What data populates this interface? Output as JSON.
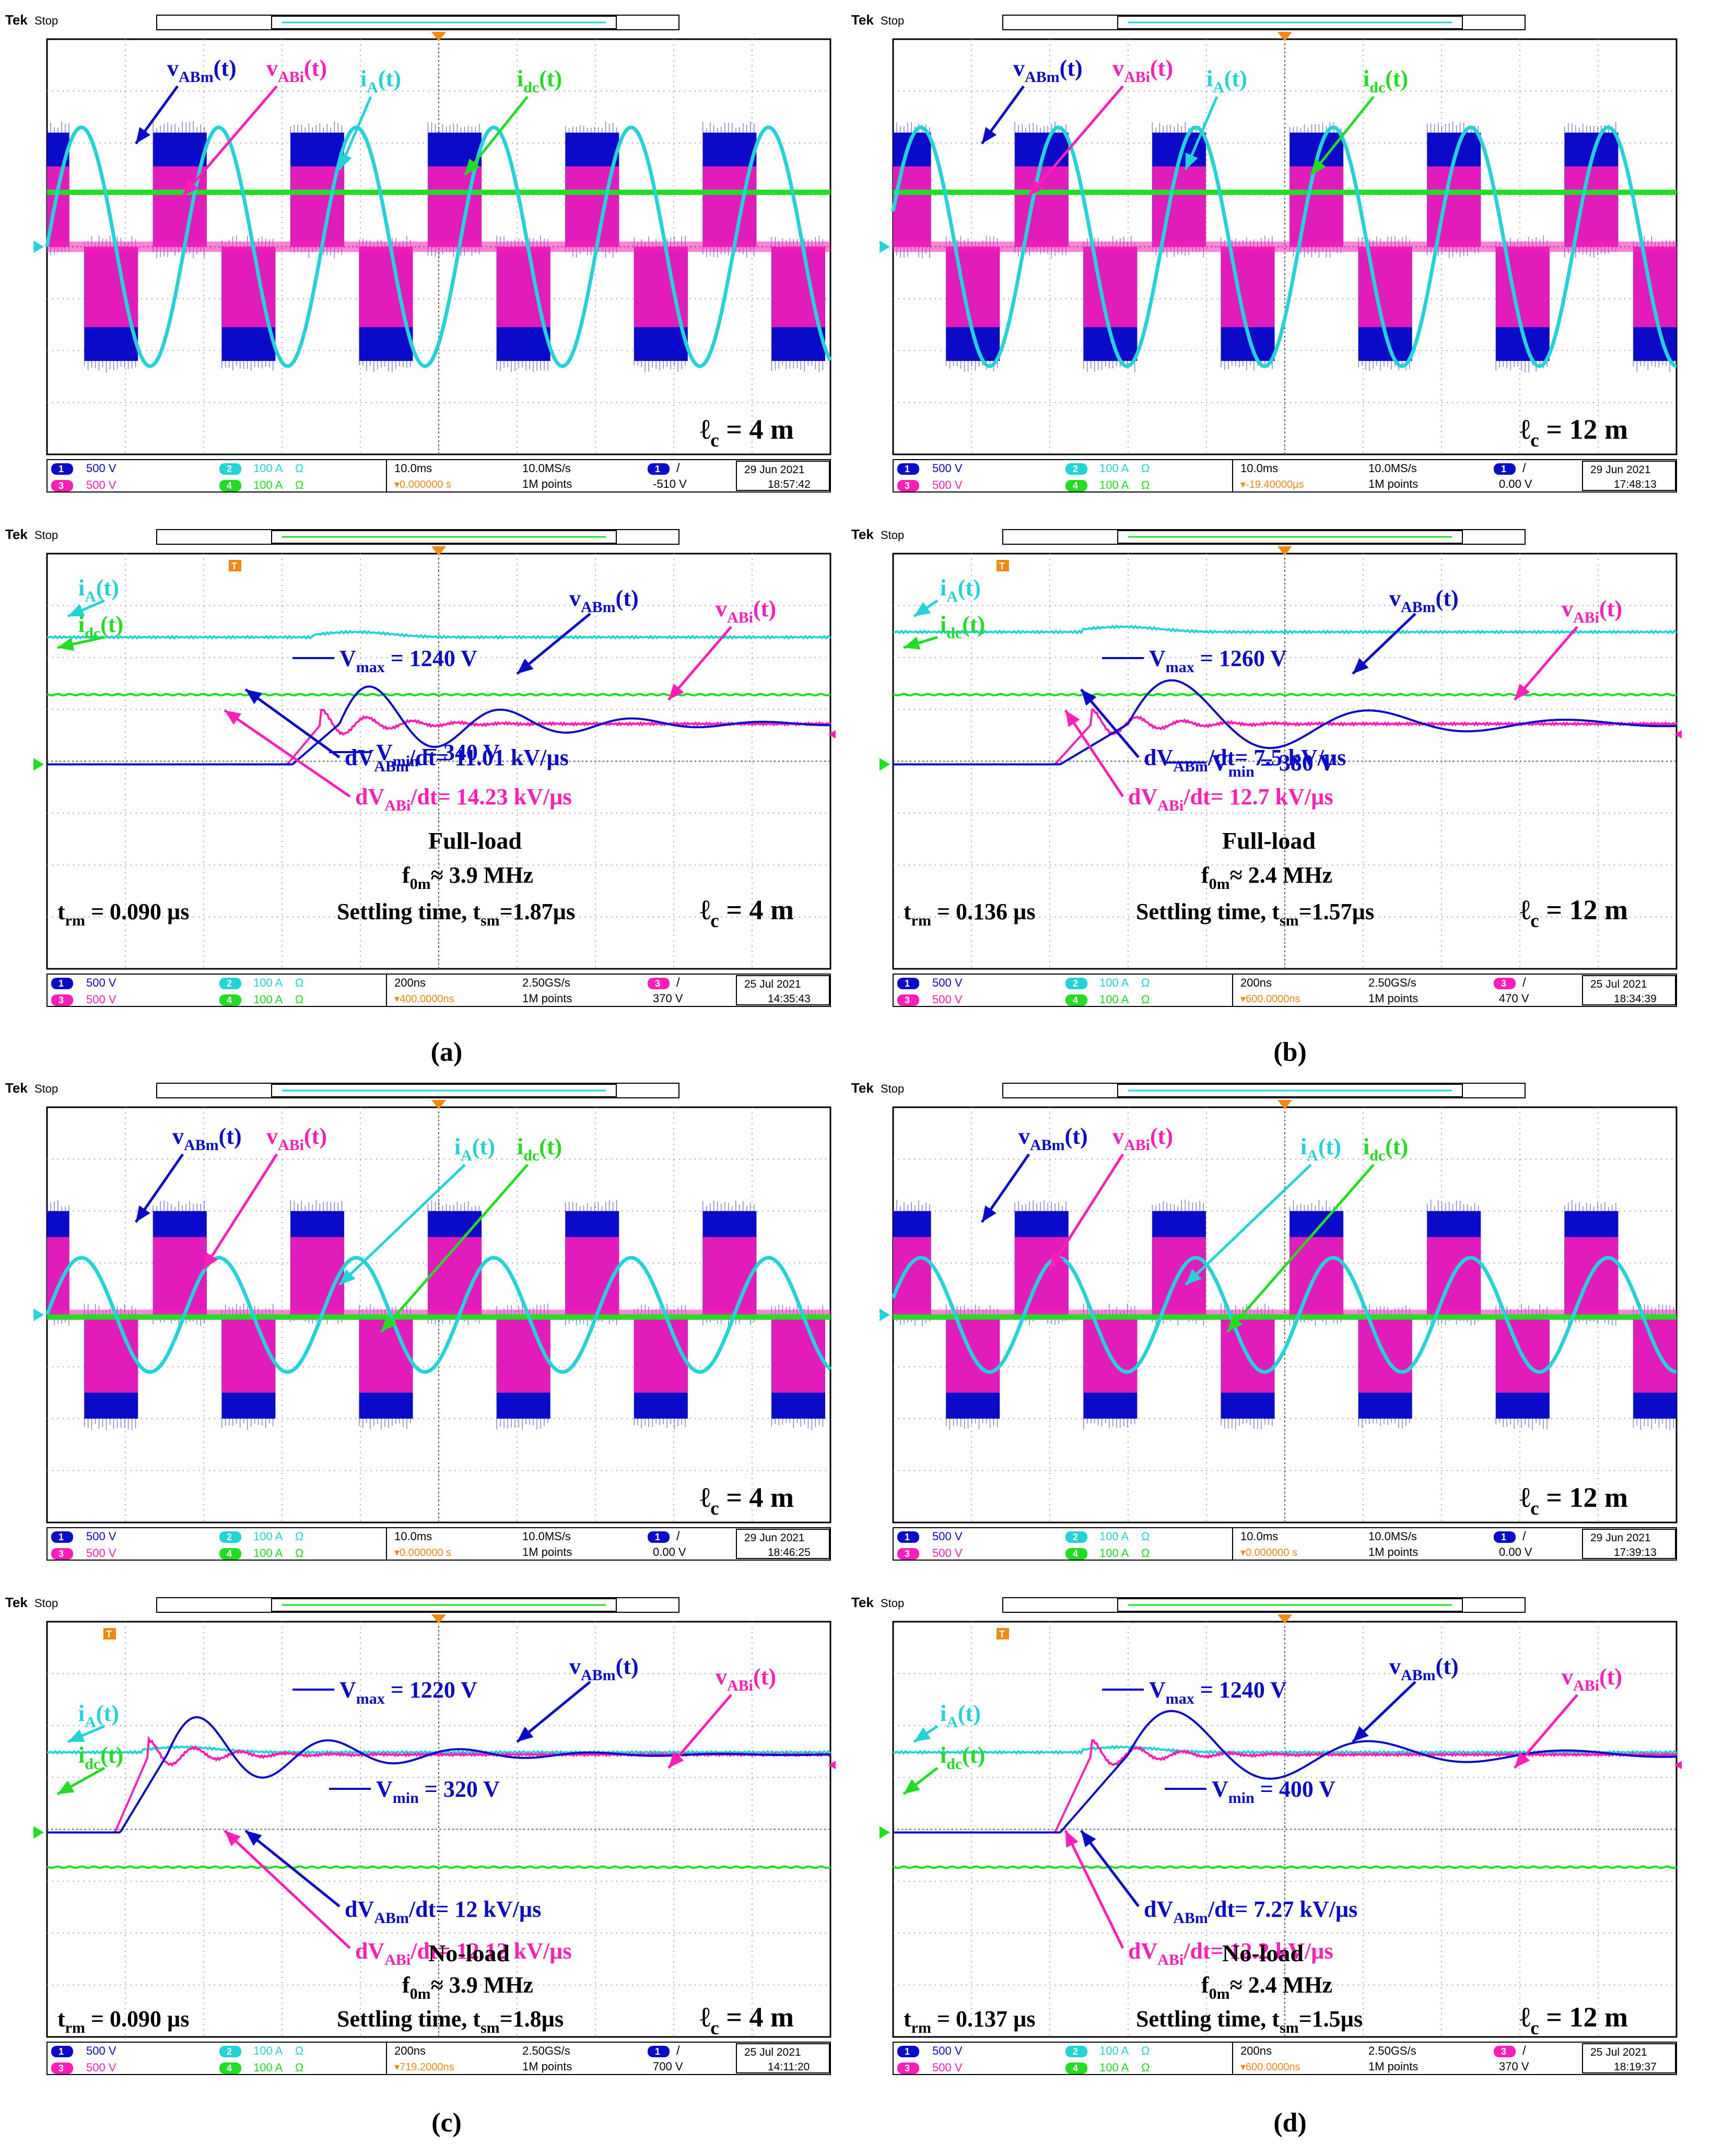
{
  "figure": {
    "captions": [
      "(a)",
      "(b)",
      "(c)",
      "(d)"
    ],
    "colors": {
      "ch1": "#0a0ac8",
      "ch2": "#22d3d8",
      "ch3": "#ff1fb8",
      "ch4": "#22dd22",
      "grid": "#8c8c8c",
      "screen_bg": "#ffffff",
      "frame": "#000000"
    }
  },
  "scope": {
    "brand": "Tek",
    "state": "Stop",
    "ch_rows": [
      {
        "ch1": "1",
        "ch1_scale": "500 V",
        "ch2": "2",
        "ch2_scale": "100 A",
        "ohm": "Ω"
      },
      {
        "ch1": "3",
        "ch1_scale": "500 V",
        "ch2": "4",
        "ch2_scale": "100 A",
        "ohm": "Ω"
      }
    ],
    "record": "1M points"
  },
  "chart_data": [
    {
      "id": "a-top",
      "type": "line",
      "condition": "Full-load, steady state",
      "cable": "4 m",
      "series": [
        {
          "name": "vABm(t)",
          "channel": 1,
          "amplitude_div": 1.9,
          "shape": "pwm-3level"
        },
        {
          "name": "vABi(t)",
          "channel": 3,
          "amplitude_div": 1.5,
          "shape": "pwm-3level"
        },
        {
          "name": "iA(t)",
          "channel": 2,
          "amplitude_div": 2.2,
          "shape": "sine",
          "cycles": 5.7
        },
        {
          "name": "idc(t)",
          "channel": 4,
          "level_div": 1.0,
          "shape": "dc"
        }
      ],
      "status": {
        "timebase": "10.0ms",
        "rate": "10.0MS/s",
        "trigger_offset": "▾0.000000 s",
        "trig_ch": "1",
        "trig_level": "-510 V",
        "date": "29 Jun  2021",
        "time": "18:57:42"
      }
    },
    {
      "id": "b-top",
      "type": "line",
      "condition": "Full-load, steady state",
      "cable": "12 m",
      "series": [
        {
          "name": "vABm(t)",
          "channel": 1,
          "amplitude_div": 1.9,
          "shape": "pwm-3level"
        },
        {
          "name": "vABi(t)",
          "channel": 3,
          "amplitude_div": 1.5,
          "shape": "pwm-3level"
        },
        {
          "name": "iA(t)",
          "channel": 2,
          "amplitude_div": 2.2,
          "shape": "sine",
          "cycles": 5.7
        },
        {
          "name": "idc(t)",
          "channel": 4,
          "level_div": 1.1,
          "shape": "dc"
        }
      ],
      "status": {
        "timebase": "10.0ms",
        "rate": "10.0MS/s",
        "trigger_offset": "▾-19.40000µs",
        "trig_ch": "1",
        "trig_level": "0.00 V",
        "date": "29 Jun  2021",
        "time": "17:48:13"
      }
    },
    {
      "id": "a-bottom",
      "type": "line",
      "condition": "Full-load transient",
      "cable": "4 m",
      "series": [
        {
          "name": "vABm(t)",
          "channel": 1,
          "vmax_V": 1240,
          "vmin_V": 340,
          "dvdt_kV_per_us": 11.01
        },
        {
          "name": "vABi(t)",
          "channel": 3,
          "dvdt_kV_per_us": 14.23
        },
        {
          "name": "iA(t)",
          "channel": 2
        },
        {
          "name": "idc(t)",
          "channel": 4
        }
      ],
      "measurements": {
        "rise_time_us": 0.09,
        "ringing_freq_MHz": 3.9,
        "settling_time_us": 1.87
      },
      "status": {
        "timebase": "200ns",
        "rate": "2.50GS/s",
        "trigger_offset": "▾400.0000ns",
        "trig_ch": "3",
        "trig_level": "370 V",
        "date": "25 Jul  2021",
        "time": "14:35:43"
      }
    },
    {
      "id": "b-bottom",
      "type": "line",
      "condition": "Full-load transient",
      "cable": "12 m",
      "series": [
        {
          "name": "vABm(t)",
          "channel": 1,
          "vmax_V": 1260,
          "vmin_V": 380,
          "dvdt_kV_per_us": 7.5
        },
        {
          "name": "vABi(t)",
          "channel": 3,
          "dvdt_kV_per_us": 12.7
        },
        {
          "name": "iA(t)",
          "channel": 2
        },
        {
          "name": "idc(t)",
          "channel": 4
        }
      ],
      "measurements": {
        "rise_time_us": 0.136,
        "ringing_freq_MHz": 2.4,
        "settling_time_us": 1.57
      },
      "status": {
        "timebase": "200ns",
        "rate": "2.50GS/s",
        "trigger_offset": "▾600.0000ns",
        "trig_ch": "3",
        "trig_level": "470 V",
        "date": "25 Jul  2021",
        "time": "18:34:39"
      }
    },
    {
      "id": "c-top",
      "type": "line",
      "condition": "No-load, steady state",
      "cable": "4 m",
      "series": [
        {
          "name": "vABm(t)",
          "channel": 1
        },
        {
          "name": "vABi(t)",
          "channel": 3
        },
        {
          "name": "iA(t)",
          "channel": 2
        },
        {
          "name": "idc(t)",
          "channel": 4
        }
      ],
      "status": {
        "timebase": "10.0ms",
        "rate": "10.0MS/s",
        "trigger_offset": "▾0.000000 s",
        "trig_ch": "1",
        "trig_level": "0.00 V",
        "date": "29 Jun  2021",
        "time": "18:46:25"
      }
    },
    {
      "id": "d-top",
      "type": "line",
      "condition": "No-load, steady state",
      "cable": "12 m",
      "series": [
        {
          "name": "vABm(t)",
          "channel": 1
        },
        {
          "name": "vABi(t)",
          "channel": 3
        },
        {
          "name": "iA(t)",
          "channel": 2
        },
        {
          "name": "idc(t)",
          "channel": 4
        }
      ],
      "status": {
        "timebase": "10.0ms",
        "rate": "10.0MS/s",
        "trigger_offset": "▾0.000000 s",
        "trig_ch": "1",
        "trig_level": "0.00 V",
        "date": "29 Jun  2021",
        "time": "17:39:13"
      }
    },
    {
      "id": "c-bottom",
      "type": "line",
      "condition": "No-load transient",
      "cable": "4 m",
      "series": [
        {
          "name": "vABm(t)",
          "channel": 1,
          "vmax_V": 1220,
          "vmin_V": 320,
          "dvdt_kV_per_us": 12
        },
        {
          "name": "vABi(t)",
          "channel": 3,
          "dvdt_kV_per_us": 12.12
        },
        {
          "name": "iA(t)",
          "channel": 2
        },
        {
          "name": "idc(t)",
          "channel": 4
        }
      ],
      "measurements": {
        "rise_time_us": 0.09,
        "ringing_freq_MHz": 3.9,
        "settling_time_us": 1.8
      },
      "status": {
        "timebase": "200ns",
        "rate": "2.50GS/s",
        "trigger_offset": "▾719.2000ns",
        "trig_ch": "1",
        "trig_level": "700 V",
        "date": "25 Jul  2021",
        "time": "14:11:20"
      }
    },
    {
      "id": "d-bottom",
      "type": "line",
      "condition": "No-load transient",
      "cable": "12 m",
      "series": [
        {
          "name": "vABm(t)",
          "channel": 1,
          "vmax_V": 1240,
          "vmin_V": 400,
          "dvdt_kV_per_us": 7.27
        },
        {
          "name": "vABi(t)",
          "channel": 3,
          "dvdt_kV_per_us": 12.2
        },
        {
          "name": "iA(t)",
          "channel": 2
        },
        {
          "name": "idc(t)",
          "channel": 4
        }
      ],
      "measurements": {
        "rise_time_us": 0.137,
        "ringing_freq_MHz": 2.4,
        "settling_time_us": 1.5
      },
      "status": {
        "timebase": "200ns",
        "rate": "2.50GS/s",
        "trigger_offset": "▾600.0000ns",
        "trig_ch": "3",
        "trig_level": "370 V",
        "date": "25 Jul  2021",
        "time": "18:19:37"
      }
    }
  ],
  "annotations": {
    "a-top": {
      "cable_label": "ℓc = 4 m",
      "labels": [
        "vABm(t)",
        "vABi(t)",
        "iA(t)",
        "idc(t)"
      ]
    },
    "b-top": {
      "cable_label": "ℓc = 12 m",
      "labels": [
        "vABm(t)",
        "vABi(t)",
        "iA(t)",
        "idc(t)"
      ]
    },
    "a-bottom": {
      "cable_label": "ℓc = 4 m",
      "vmax": "Vmax = 1240 V",
      "vmin": "Vmin = 340 V",
      "dvm": "dVABm/dt= 11.01 kV/µs",
      "dvi": "dVABi/dt= 14.23 kV/µs",
      "load": "Full-load",
      "freq": "f0m≈ 3.9 MHz",
      "settle": "Settling time, tsm=1.87µs",
      "trm": "trm = 0.090 µs"
    },
    "b-bottom": {
      "cable_label": "ℓc = 12 m",
      "vmax": "Vmax = 1260 V",
      "vmin": "Vmin = 380 V",
      "dvm": "dVABm/dt= 7.5 kV/µs",
      "dvi": "dVABi/dt= 12.7 kV/µs",
      "load": "Full-load",
      "freq": "f0m≈ 2.4 MHz",
      "settle": "Settling time, tsm=1.57µs",
      "trm": "trm = 0.136 µs"
    },
    "c-top": {
      "cable_label": "ℓc = 4 m",
      "labels": [
        "vABm(t)",
        "vABi(t)",
        "iA(t)",
        "idc(t)"
      ]
    },
    "d-top": {
      "cable_label": "ℓc = 12 m",
      "labels": [
        "vABm(t)",
        "vABi(t)",
        "iA(t)",
        "idc(t)"
      ]
    },
    "c-bottom": {
      "cable_label": "ℓc = 4 m",
      "vmax": "Vmax = 1220 V",
      "vmin": "Vmin = 320 V",
      "dvm": "dVABm/dt= 12 kV/µs",
      "dvi": "dVABi/dt= 12.12 kV/µs",
      "load": "No-load",
      "freq": "f0m≈ 3.9 MHz",
      "settle": "Settling time, tsm=1.8µs",
      "trm": "trm = 0.090 µs"
    },
    "d-bottom": {
      "cable_label": "ℓc = 12 m",
      "vmax": "Vmax = 1240 V",
      "vmin": "Vmin = 400 V",
      "dvm": "dVABm/dt= 7.27 kV/µs",
      "dvi": "dVABi/dt= 12.2 kV/µs",
      "load": "No-load",
      "freq": "f0m≈ 2.4 MHz",
      "settle": "Settling time, tsm=1.5µs",
      "trm": "trm = 0.137 µs"
    }
  }
}
